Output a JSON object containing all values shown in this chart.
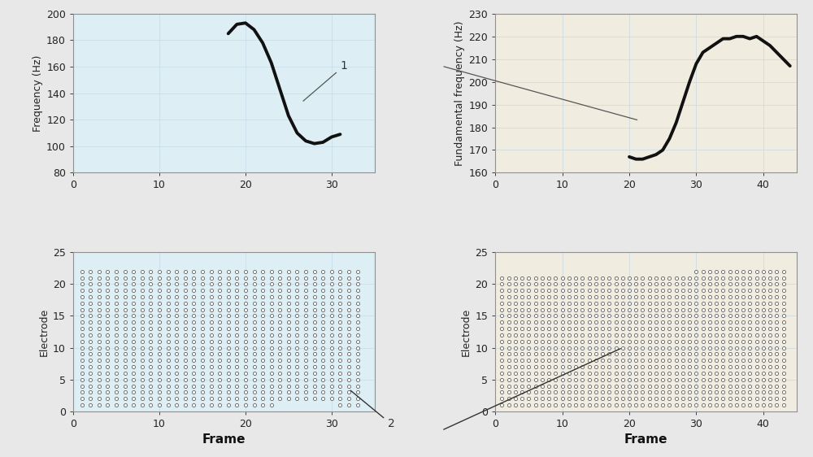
{
  "top_left": {
    "ylabel": "Frequency (Hz)",
    "ylim": [
      80,
      200
    ],
    "yticks": [
      80,
      100,
      120,
      140,
      160,
      180,
      200
    ],
    "xlim": [
      0,
      35
    ],
    "xticks": [
      0,
      10,
      20,
      30
    ],
    "curve_x": [
      18,
      19,
      20,
      21,
      22,
      23,
      24,
      25,
      26,
      27,
      28,
      29,
      30,
      31
    ],
    "curve_y": [
      185,
      192,
      193,
      188,
      178,
      163,
      143,
      123,
      110,
      104,
      102,
      103,
      107,
      109
    ],
    "bg_color": "#ddeef5",
    "line_color": "#111111"
  },
  "top_right": {
    "ylabel": "Fundamental frequency (Hz)",
    "ylim": [
      160,
      230
    ],
    "yticks": [
      160,
      170,
      180,
      190,
      200,
      210,
      220,
      230
    ],
    "xlim": [
      0,
      45
    ],
    "xticks": [
      0,
      10,
      20,
      30,
      40
    ],
    "curve_x": [
      20,
      21,
      22,
      23,
      24,
      25,
      26,
      27,
      28,
      29,
      30,
      31,
      32,
      33,
      34,
      35,
      36,
      37,
      38,
      39,
      40,
      41,
      42,
      43,
      44
    ],
    "curve_y": [
      167,
      166,
      166,
      167,
      168,
      170,
      175,
      182,
      191,
      200,
      208,
      213,
      215,
      217,
      219,
      219,
      220,
      220,
      219,
      220,
      218,
      216,
      213,
      210,
      207
    ],
    "bg_color": "#f0ecdf",
    "line_color": "#111111"
  },
  "bottom_left": {
    "ylabel": "Electrode",
    "xlabel": "Frame",
    "ylim": [
      0,
      25
    ],
    "yticks": [
      0,
      5,
      10,
      15,
      20,
      25
    ],
    "xlim": [
      0,
      35
    ],
    "xticks": [
      0,
      10,
      20,
      30
    ],
    "dot_color": "#ffffff",
    "dot_edge_color": "#606060",
    "bg_color": "#ddeef5"
  },
  "bottom_right": {
    "ylabel": "Electrode",
    "xlabel": "Frame",
    "ylim": [
      0,
      25
    ],
    "yticks": [
      0,
      5,
      10,
      15,
      20,
      25
    ],
    "xlim": [
      0,
      45
    ],
    "xticks": [
      0,
      10,
      20,
      30,
      40
    ],
    "dot_color": "#ffffff",
    "dot_edge_color": "#606060",
    "bg_color": "#f0ecdf"
  },
  "grid_color": "#c8dce8",
  "fig_bg": "#e8e8e8"
}
